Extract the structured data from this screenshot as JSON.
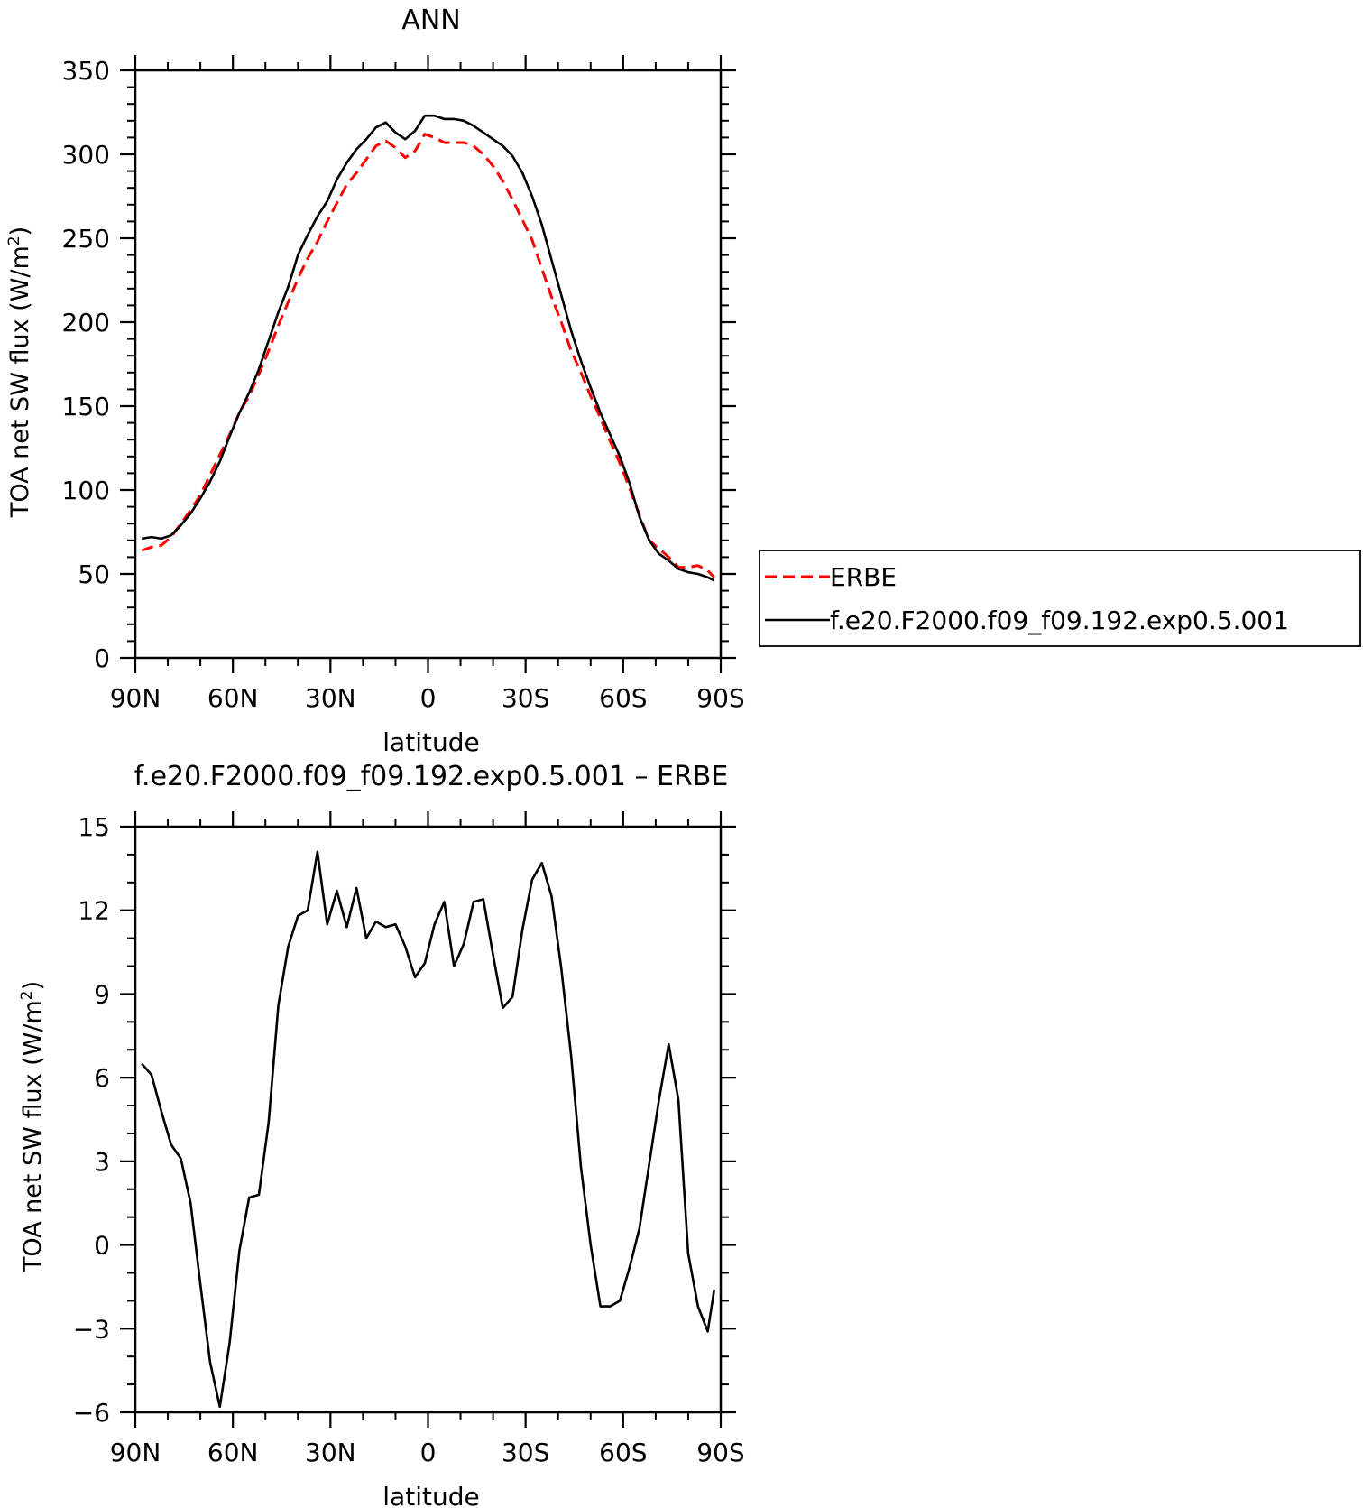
{
  "chart_data": [
    {
      "type": "line",
      "title": "ANN",
      "xlabel": "latitude",
      "ylabel": "TOA net SW flux (W/m²)",
      "ylabel_main": "TOA net SW flux (W/m",
      "ylabel_sup": "2",
      "ylabel_close": ")",
      "xlim": [
        90,
        -90
      ],
      "ylim": [
        0,
        350
      ],
      "x_ticks": [
        {
          "value": 90,
          "label": "90N"
        },
        {
          "value": 60,
          "label": "60N"
        },
        {
          "value": 30,
          "label": "30N"
        },
        {
          "value": 0,
          "label": "0"
        },
        {
          "value": -30,
          "label": "30S"
        },
        {
          "value": -60,
          "label": "60S"
        },
        {
          "value": -90,
          "label": "90S"
        }
      ],
      "y_ticks": [
        {
          "value": 0,
          "label": "0"
        },
        {
          "value": 50,
          "label": "50"
        },
        {
          "value": 100,
          "label": "100"
        },
        {
          "value": 150,
          "label": "150"
        },
        {
          "value": 200,
          "label": "200"
        },
        {
          "value": 250,
          "label": "250"
        },
        {
          "value": 300,
          "label": "300"
        },
        {
          "value": 350,
          "label": "350"
        }
      ],
      "legend_position": "right",
      "series": [
        {
          "name": "ERBE",
          "color": "#ff0000",
          "dash": "dashed",
          "x": [
            88,
            85,
            82,
            79,
            76,
            73,
            70,
            67,
            64,
            61,
            58,
            55,
            52,
            49,
            46,
            43,
            40,
            37,
            34,
            31,
            28,
            25,
            22,
            19,
            16,
            13,
            10,
            7,
            4,
            1,
            -2,
            -5,
            -8,
            -11,
            -14,
            -17,
            -20,
            -23,
            -26,
            -29,
            -32,
            -35,
            -38,
            -41,
            -44,
            -47,
            -50,
            -53,
            -56,
            -59,
            -62,
            -65,
            -68,
            -71,
            -74,
            -77,
            -80,
            -83,
            -86,
            -88
          ],
          "y": [
            64,
            66,
            67,
            72,
            80,
            88,
            97,
            109,
            121,
            133,
            146,
            156,
            169,
            183,
            198,
            212,
            226,
            238,
            248,
            260,
            271,
            282,
            289,
            297,
            305,
            308,
            304,
            298,
            302,
            312,
            310,
            307,
            307,
            307,
            305,
            300,
            293,
            284,
            273,
            261,
            249,
            232,
            215,
            200,
            183,
            170,
            156,
            143,
            129,
            116,
            101,
            85,
            70,
            65,
            60,
            54,
            54,
            55,
            52,
            48
          ]
        },
        {
          "name": "f.e20.F2000.f09_f09.192.exp0.5.001",
          "color": "#000000",
          "dash": "solid",
          "x": [
            88,
            85,
            82,
            79,
            76,
            73,
            70,
            67,
            64,
            61,
            58,
            55,
            52,
            49,
            46,
            43,
            40,
            37,
            34,
            31,
            28,
            25,
            22,
            19,
            16,
            13,
            10,
            7,
            4,
            1,
            -2,
            -5,
            -8,
            -11,
            -14,
            -17,
            -20,
            -23,
            -26,
            -29,
            -32,
            -35,
            -38,
            -41,
            -44,
            -47,
            -50,
            -53,
            -56,
            -59,
            -62,
            -65,
            -68,
            -71,
            -74,
            -77,
            -80,
            -83,
            -86,
            -88
          ],
          "y": [
            71,
            72,
            71,
            73,
            79,
            86,
            95,
            105,
            117,
            132,
            146,
            158,
            172,
            189,
            206,
            221,
            240,
            252,
            263,
            272,
            285,
            295,
            303,
            309,
            316,
            319,
            313,
            309,
            314,
            323,
            323,
            321,
            321,
            320,
            317,
            313,
            309,
            305,
            299,
            289,
            275,
            258,
            237,
            216,
            195,
            177,
            161,
            146,
            133,
            120,
            104,
            84,
            70,
            62,
            58,
            53,
            51,
            50,
            48,
            46
          ]
        }
      ]
    },
    {
      "type": "line",
      "title": "f.e20.F2000.f09_f09.192.exp0.5.001 – ERBE",
      "xlabel": "latitude",
      "ylabel": "TOA net SW flux (W/m²)",
      "ylabel_main": "TOA net SW flux (W/m",
      "ylabel_sup": "2",
      "ylabel_close": ")",
      "xlim": [
        90,
        -90
      ],
      "ylim": [
        -6,
        15
      ],
      "x_ticks": [
        {
          "value": 90,
          "label": "90N"
        },
        {
          "value": 60,
          "label": "60N"
        },
        {
          "value": 30,
          "label": "30N"
        },
        {
          "value": 0,
          "label": "0"
        },
        {
          "value": -30,
          "label": "30S"
        },
        {
          "value": -60,
          "label": "60S"
        },
        {
          "value": -90,
          "label": "90S"
        }
      ],
      "y_ticks": [
        {
          "value": -6,
          "label": "−6"
        },
        {
          "value": -3,
          "label": "−3"
        },
        {
          "value": 0,
          "label": "0"
        },
        {
          "value": 3,
          "label": "3"
        },
        {
          "value": 6,
          "label": "6"
        },
        {
          "value": 9,
          "label": "9"
        },
        {
          "value": 12,
          "label": "12"
        },
        {
          "value": 15,
          "label": "15"
        }
      ],
      "series": [
        {
          "color": "#000000",
          "dash": "solid",
          "x": [
            88,
            85,
            82,
            79,
            76,
            73,
            70,
            67,
            64,
            61,
            58,
            55,
            52,
            49,
            46,
            43,
            40,
            37,
            34,
            31,
            28,
            25,
            22,
            19,
            16,
            13,
            10,
            7,
            4,
            1,
            -2,
            -5,
            -8,
            -11,
            -14,
            -17,
            -20,
            -23,
            -26,
            -29,
            -32,
            -35,
            -38,
            -41,
            -44,
            -47,
            -50,
            -53,
            -56,
            -59,
            -62,
            -65,
            -68,
            -71,
            -74,
            -77,
            -80,
            -83,
            -86,
            -88
          ],
          "y": [
            6.5,
            6.1,
            4.8,
            3.6,
            3.1,
            1.5,
            -1.4,
            -4.2,
            -5.8,
            -3.5,
            -0.2,
            1.7,
            1.8,
            4.4,
            8.6,
            10.7,
            11.8,
            12.0,
            14.1,
            11.5,
            12.7,
            11.4,
            12.8,
            11.0,
            11.6,
            11.4,
            11.5,
            10.7,
            9.6,
            10.1,
            11.5,
            12.3,
            10.0,
            10.8,
            12.3,
            12.4,
            10.4,
            8.5,
            8.9,
            11.3,
            13.1,
            13.7,
            12.5,
            9.9,
            6.8,
            2.8,
            0.0,
            -2.2,
            -2.2,
            -2.0,
            -0.8,
            0.6,
            2.9,
            5.2,
            7.2,
            5.2,
            -0.3,
            -2.2,
            -3.1,
            -1.6
          ]
        }
      ]
    }
  ]
}
